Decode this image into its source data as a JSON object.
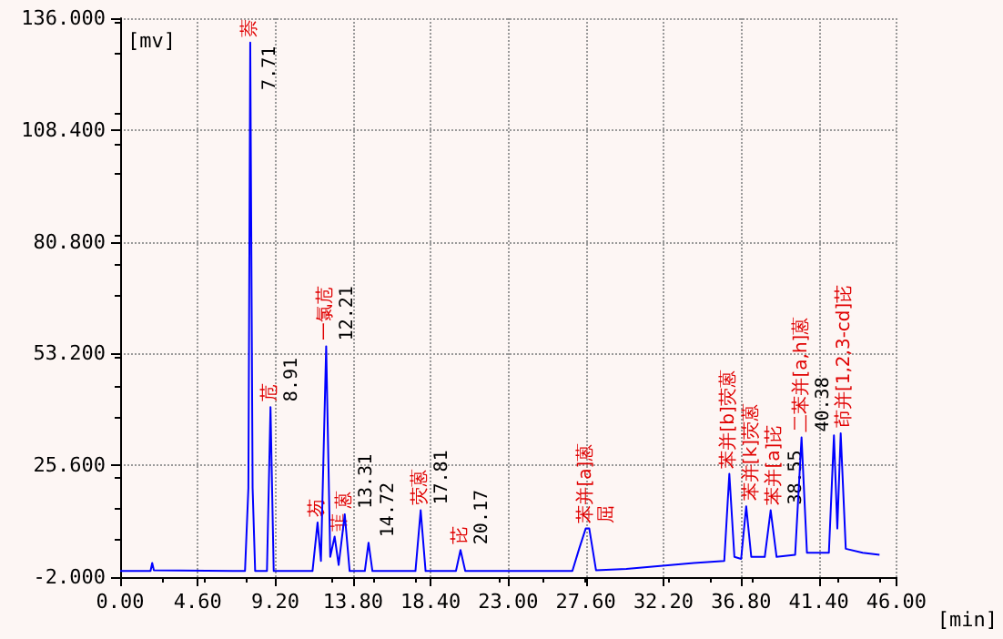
{
  "chart_data": {
    "type": "line",
    "xlabel": "[min]",
    "ylabel": "[mv]",
    "x": [
      0,
      1.8,
      1.9,
      2.0,
      7.4,
      7.6,
      7.71,
      7.85,
      8.0,
      8.7,
      8.91,
      9.1,
      11.4,
      11.7,
      11.9,
      12.21,
      12.45,
      12.71,
      12.95,
      13.31,
      13.6,
      14.5,
      14.72,
      14.95,
      17.5,
      17.81,
      18.1,
      19.9,
      20.17,
      20.45,
      26.8,
      27.2,
      27.59,
      27.8,
      28.2,
      30,
      34,
      35.8,
      36.1,
      36.4,
      36.8,
      37.1,
      37.4,
      38.2,
      38.55,
      38.9,
      40.0,
      40.38,
      40.7,
      42.0,
      42.3,
      42.5,
      42.7,
      43.0,
      44,
      45
    ],
    "series": [
      {
        "color": "#0000ff",
        "values": [
          -0.5,
          -0.5,
          1.5,
          -0.3,
          -0.5,
          20,
          130,
          20,
          -0.5,
          -0.5,
          40,
          -0.5,
          -0.5,
          11.5,
          2,
          55,
          3,
          8,
          1,
          13.5,
          -0.5,
          -0.5,
          6.5,
          -0.5,
          -0.5,
          14.5,
          -0.5,
          -0.5,
          4.7,
          -0.5,
          -0.5,
          5,
          10,
          10,
          -0.3,
          0,
          1.5,
          2,
          23.5,
          3,
          2.5,
          15.5,
          3,
          3,
          14.5,
          3,
          3.5,
          32.5,
          4,
          4,
          33,
          10,
          33.5,
          5,
          4,
          3.5
        ]
      }
    ],
    "xlim": [
      0,
      46
    ],
    "ylim": [
      -2,
      136
    ],
    "xticks": [
      {
        "value": 0,
        "label": "0.00"
      },
      {
        "value": 4.6,
        "label": "4.60"
      },
      {
        "value": 9.2,
        "label": "9.20"
      },
      {
        "value": 13.8,
        "label": "13.80"
      },
      {
        "value": 18.4,
        "label": "18.40"
      },
      {
        "value": 23,
        "label": "23.00"
      },
      {
        "value": 27.6,
        "label": "27.60"
      },
      {
        "value": 32.2,
        "label": "32.20"
      },
      {
        "value": 36.8,
        "label": "36.80"
      },
      {
        "value": 41.4,
        "label": "41.40"
      },
      {
        "value": 46,
        "label": "46.00"
      }
    ],
    "yticks": [
      {
        "value": -2,
        "label": "-2.000"
      },
      {
        "value": 25.6,
        "label": "25.600"
      },
      {
        "value": 53.2,
        "label": "53.200"
      },
      {
        "value": 80.8,
        "label": "80.800"
      },
      {
        "value": 108.4,
        "label": "108.400"
      },
      {
        "value": 136,
        "label": "136.000"
      }
    ],
    "grid": true,
    "marker": "none",
    "line_style": "solid",
    "annotations": [
      {
        "text": "萘",
        "x": 7.71,
        "y": 130
      },
      {
        "text": "7.71",
        "x": 7.71,
        "y": 130
      },
      {
        "text": "苊",
        "x": 8.91,
        "y": 40
      },
      {
        "text": "8.91",
        "x": 8.91,
        "y": 40
      },
      {
        "text": "芴",
        "x": 11.7,
        "y": 11.5
      },
      {
        "text": "一氯苊",
        "x": 12.21,
        "y": 55
      },
      {
        "text": "12.21",
        "x": 12.21,
        "y": 55
      },
      {
        "text": "菲",
        "x": 12.71,
        "y": 8
      },
      {
        "text": "蒽",
        "x": 13.31,
        "y": 13.5
      },
      {
        "text": "13.31",
        "x": 13.31,
        "y": 13.5
      },
      {
        "text": "14.72",
        "x": 14.72,
        "y": 6.5
      },
      {
        "text": "荧蒽",
        "x": 17.81,
        "y": 14.5
      },
      {
        "text": "17.81",
        "x": 17.81,
        "y": 14.5
      },
      {
        "text": "芘",
        "x": 20.17,
        "y": 4.7
      },
      {
        "text": "20.17",
        "x": 20.17,
        "y": 4.7
      },
      {
        "text": "苯并[a]蒽",
        "x": 27.59,
        "y": 10
      },
      {
        "text": "屈",
        "x": 27.8,
        "y": 10
      },
      {
        "text": "苯并[b]荧蒽",
        "x": 36.1,
        "y": 23.5
      },
      {
        "text": "苯并[k]荧蒽",
        "x": 37.1,
        "y": 15.5
      },
      {
        "text": "苯并[a]芘",
        "x": 38.55,
        "y": 14.5
      },
      {
        "text": "38.55",
        "x": 38.55,
        "y": 14.5
      },
      {
        "text": "二苯并[a,h]蒽",
        "x": 40.38,
        "y": 32.5
      },
      {
        "text": "40.38",
        "x": 40.38,
        "y": 32.5
      },
      {
        "text": "茚并[1,2,3-cd]芘",
        "x": 42.7,
        "y": 33.5
      }
    ]
  }
}
